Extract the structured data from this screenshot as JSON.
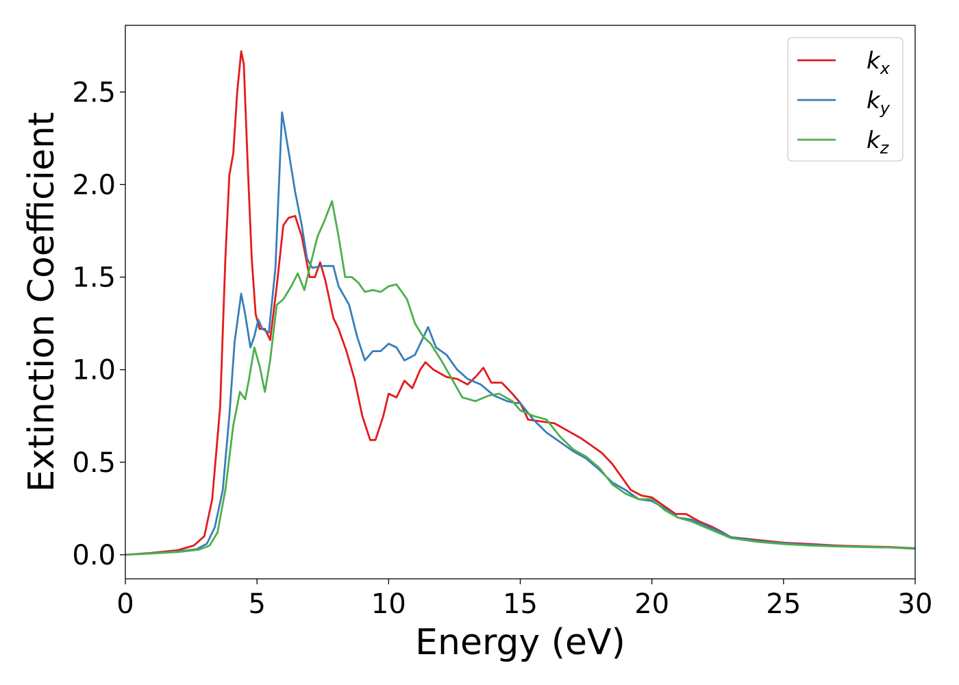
{
  "chart_data": {
    "type": "line",
    "title": "",
    "xlabel": "Energy (eV)",
    "ylabel": "Extinction Coefficient",
    "xlim": [
      0,
      30
    ],
    "ylim": [
      -0.13,
      2.86
    ],
    "xticks": [
      0,
      5,
      10,
      15,
      20,
      25,
      30
    ],
    "xtick_labels": [
      "0",
      "5",
      "10",
      "15",
      "20",
      "25",
      "30"
    ],
    "yticks": [
      0.0,
      0.5,
      1.0,
      1.5,
      2.0,
      2.5
    ],
    "ytick_labels": [
      "0.0",
      "0.5",
      "1.0",
      "1.5",
      "2.0",
      "2.5"
    ],
    "grid": false,
    "legend": {
      "position": "top-right",
      "entries": [
        {
          "base": "k",
          "sub": "x"
        },
        {
          "base": "k",
          "sub": "y"
        },
        {
          "base": "k",
          "sub": "z"
        }
      ]
    },
    "series": [
      {
        "name": "k_x",
        "color": "#e41a1c",
        "points": [
          [
            0,
            0
          ],
          [
            1,
            0.01
          ],
          [
            2,
            0.025
          ],
          [
            2.6,
            0.05
          ],
          [
            3,
            0.1
          ],
          [
            3.3,
            0.3
          ],
          [
            3.6,
            0.8
          ],
          [
            3.8,
            1.6
          ],
          [
            3.95,
            2.05
          ],
          [
            4.1,
            2.17
          ],
          [
            4.25,
            2.5
          ],
          [
            4.4,
            2.72
          ],
          [
            4.5,
            2.65
          ],
          [
            4.65,
            2.1
          ],
          [
            4.8,
            1.6
          ],
          [
            4.95,
            1.3
          ],
          [
            5.1,
            1.22
          ],
          [
            5.3,
            1.22
          ],
          [
            5.5,
            1.16
          ],
          [
            5.75,
            1.45
          ],
          [
            6,
            1.78
          ],
          [
            6.2,
            1.82
          ],
          [
            6.45,
            1.83
          ],
          [
            6.7,
            1.72
          ],
          [
            7,
            1.5
          ],
          [
            7.2,
            1.5
          ],
          [
            7.4,
            1.58
          ],
          [
            7.6,
            1.48
          ],
          [
            7.9,
            1.28
          ],
          [
            8.1,
            1.22
          ],
          [
            8.4,
            1.1
          ],
          [
            8.7,
            0.95
          ],
          [
            9,
            0.75
          ],
          [
            9.3,
            0.62
          ],
          [
            9.5,
            0.62
          ],
          [
            9.8,
            0.75
          ],
          [
            10,
            0.87
          ],
          [
            10.3,
            0.85
          ],
          [
            10.6,
            0.94
          ],
          [
            10.9,
            0.9
          ],
          [
            11.2,
            1.0
          ],
          [
            11.4,
            1.04
          ],
          [
            11.7,
            1.0
          ],
          [
            12.2,
            0.96
          ],
          [
            12.6,
            0.95
          ],
          [
            13,
            0.92
          ],
          [
            13.3,
            0.96
          ],
          [
            13.6,
            1.01
          ],
          [
            13.9,
            0.93
          ],
          [
            14.3,
            0.93
          ],
          [
            14.7,
            0.87
          ],
          [
            15,
            0.82
          ],
          [
            15.3,
            0.73
          ],
          [
            15.8,
            0.72
          ],
          [
            16.3,
            0.71
          ],
          [
            16.8,
            0.67
          ],
          [
            17.3,
            0.63
          ],
          [
            17.7,
            0.59
          ],
          [
            18.1,
            0.55
          ],
          [
            18.5,
            0.49
          ],
          [
            18.9,
            0.41
          ],
          [
            19.2,
            0.35
          ],
          [
            19.6,
            0.32
          ],
          [
            20,
            0.31
          ],
          [
            20.5,
            0.26
          ],
          [
            20.9,
            0.22
          ],
          [
            21.3,
            0.22
          ],
          [
            21.8,
            0.18
          ],
          [
            22.3,
            0.15
          ],
          [
            22.7,
            0.12
          ],
          [
            23,
            0.095
          ],
          [
            24,
            0.08
          ],
          [
            25,
            0.065
          ],
          [
            26,
            0.058
          ],
          [
            27,
            0.05
          ],
          [
            28,
            0.045
          ],
          [
            29,
            0.042
          ],
          [
            30,
            0.035
          ]
        ]
      },
      {
        "name": "k_y",
        "color": "#377eb8",
        "points": [
          [
            0,
            0
          ],
          [
            1,
            0.008
          ],
          [
            2,
            0.018
          ],
          [
            2.7,
            0.03
          ],
          [
            3.1,
            0.06
          ],
          [
            3.4,
            0.15
          ],
          [
            3.7,
            0.35
          ],
          [
            3.95,
            0.75
          ],
          [
            4.15,
            1.15
          ],
          [
            4.4,
            1.41
          ],
          [
            4.55,
            1.3
          ],
          [
            4.75,
            1.12
          ],
          [
            4.9,
            1.18
          ],
          [
            5.05,
            1.27
          ],
          [
            5.2,
            1.22
          ],
          [
            5.45,
            1.2
          ],
          [
            5.7,
            1.55
          ],
          [
            5.95,
            2.39
          ],
          [
            6.2,
            2.18
          ],
          [
            6.45,
            1.96
          ],
          [
            6.7,
            1.78
          ],
          [
            6.9,
            1.6
          ],
          [
            7.1,
            1.55
          ],
          [
            7.5,
            1.56
          ],
          [
            7.9,
            1.56
          ],
          [
            8.1,
            1.45
          ],
          [
            8.5,
            1.35
          ],
          [
            8.8,
            1.18
          ],
          [
            9.1,
            1.05
          ],
          [
            9.4,
            1.1
          ],
          [
            9.7,
            1.1
          ],
          [
            10,
            1.14
          ],
          [
            10.3,
            1.12
          ],
          [
            10.6,
            1.05
          ],
          [
            11,
            1.08
          ],
          [
            11.5,
            1.23
          ],
          [
            11.8,
            1.12
          ],
          [
            12.2,
            1.08
          ],
          [
            12.6,
            1.0
          ],
          [
            13,
            0.95
          ],
          [
            13.5,
            0.92
          ],
          [
            14,
            0.86
          ],
          [
            14.5,
            0.83
          ],
          [
            14.8,
            0.82
          ],
          [
            15,
            0.82
          ],
          [
            15.5,
            0.73
          ],
          [
            16,
            0.66
          ],
          [
            16.5,
            0.61
          ],
          [
            17,
            0.56
          ],
          [
            17.5,
            0.52
          ],
          [
            18,
            0.46
          ],
          [
            18.5,
            0.39
          ],
          [
            19,
            0.35
          ],
          [
            19.5,
            0.3
          ],
          [
            20,
            0.29
          ],
          [
            20.5,
            0.25
          ],
          [
            21,
            0.2
          ],
          [
            21.5,
            0.19
          ],
          [
            22,
            0.16
          ],
          [
            22.5,
            0.13
          ],
          [
            23,
            0.095
          ],
          [
            24,
            0.075
          ],
          [
            25,
            0.062
          ],
          [
            26,
            0.054
          ],
          [
            27,
            0.047
          ],
          [
            28,
            0.042
          ],
          [
            29,
            0.04
          ],
          [
            30,
            0.035
          ]
        ]
      },
      {
        "name": "k_z",
        "color": "#4daf4a",
        "points": [
          [
            0,
            0
          ],
          [
            1,
            0.007
          ],
          [
            2,
            0.015
          ],
          [
            2.8,
            0.028
          ],
          [
            3.2,
            0.05
          ],
          [
            3.5,
            0.12
          ],
          [
            3.8,
            0.35
          ],
          [
            4.1,
            0.7
          ],
          [
            4.35,
            0.88
          ],
          [
            4.55,
            0.84
          ],
          [
            4.7,
            0.95
          ],
          [
            4.9,
            1.12
          ],
          [
            5.1,
            1.02
          ],
          [
            5.3,
            0.88
          ],
          [
            5.5,
            1.05
          ],
          [
            5.75,
            1.35
          ],
          [
            6,
            1.38
          ],
          [
            6.3,
            1.45
          ],
          [
            6.55,
            1.52
          ],
          [
            6.8,
            1.43
          ],
          [
            7,
            1.55
          ],
          [
            7.3,
            1.72
          ],
          [
            7.55,
            1.8
          ],
          [
            7.85,
            1.91
          ],
          [
            8.1,
            1.72
          ],
          [
            8.35,
            1.5
          ],
          [
            8.6,
            1.5
          ],
          [
            8.85,
            1.47
          ],
          [
            9.1,
            1.42
          ],
          [
            9.4,
            1.43
          ],
          [
            9.7,
            1.42
          ],
          [
            10,
            1.45
          ],
          [
            10.3,
            1.46
          ],
          [
            10.7,
            1.38
          ],
          [
            11,
            1.25
          ],
          [
            11.3,
            1.18
          ],
          [
            11.6,
            1.14
          ],
          [
            12,
            1.05
          ],
          [
            12.4,
            0.95
          ],
          [
            12.8,
            0.85
          ],
          [
            13.3,
            0.83
          ],
          [
            13.8,
            0.86
          ],
          [
            14.2,
            0.87
          ],
          [
            14.7,
            0.83
          ],
          [
            15,
            0.78
          ],
          [
            15.5,
            0.75
          ],
          [
            16,
            0.73
          ],
          [
            16.5,
            0.64
          ],
          [
            17,
            0.57
          ],
          [
            17.5,
            0.53
          ],
          [
            18,
            0.47
          ],
          [
            18.5,
            0.38
          ],
          [
            19,
            0.33
          ],
          [
            19.5,
            0.3
          ],
          [
            20,
            0.3
          ],
          [
            20.5,
            0.24
          ],
          [
            21,
            0.2
          ],
          [
            21.5,
            0.18
          ],
          [
            22,
            0.15
          ],
          [
            22.5,
            0.12
          ],
          [
            23,
            0.09
          ],
          [
            24,
            0.07
          ],
          [
            25,
            0.058
          ],
          [
            26,
            0.05
          ],
          [
            27,
            0.045
          ],
          [
            28,
            0.042
          ],
          [
            29,
            0.04
          ],
          [
            30,
            0.032
          ]
        ]
      }
    ]
  }
}
